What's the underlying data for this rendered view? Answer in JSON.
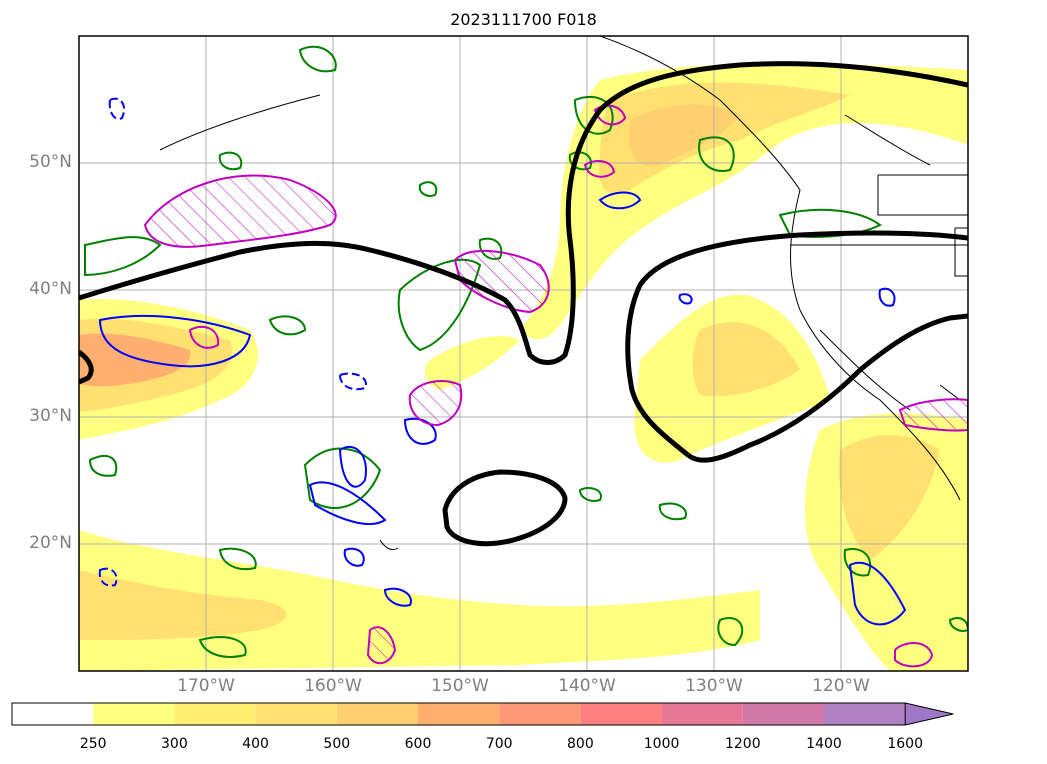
{
  "title": "2023111700 F018",
  "map": {
    "lat_labels": [
      "50°N",
      "40°N",
      "30°N",
      "20°N"
    ],
    "lon_labels": [
      "170°W",
      "160°W",
      "150°W",
      "140°W",
      "130°W",
      "120°W"
    ],
    "colors": {
      "grid": "#b0b0b0",
      "coast": "#000000",
      "jet_contour": "#000000",
      "green_contour": "#008000",
      "blue_contour": "#0000ff",
      "magenta_contour": "#c000c0"
    }
  },
  "colorbar": {
    "labels": [
      "250",
      "300",
      "400",
      "500",
      "600",
      "700",
      "800",
      "1000",
      "1200",
      "1400",
      "1600"
    ],
    "colors": [
      "#ffffff",
      "#ffff80",
      "#ffee70",
      "#ffe070",
      "#ffd070",
      "#ffb070",
      "#ff9878",
      "#ff8080",
      "#e87898",
      "#d078a8",
      "#b080c0",
      "#a078c8"
    ],
    "extend": "max"
  }
}
